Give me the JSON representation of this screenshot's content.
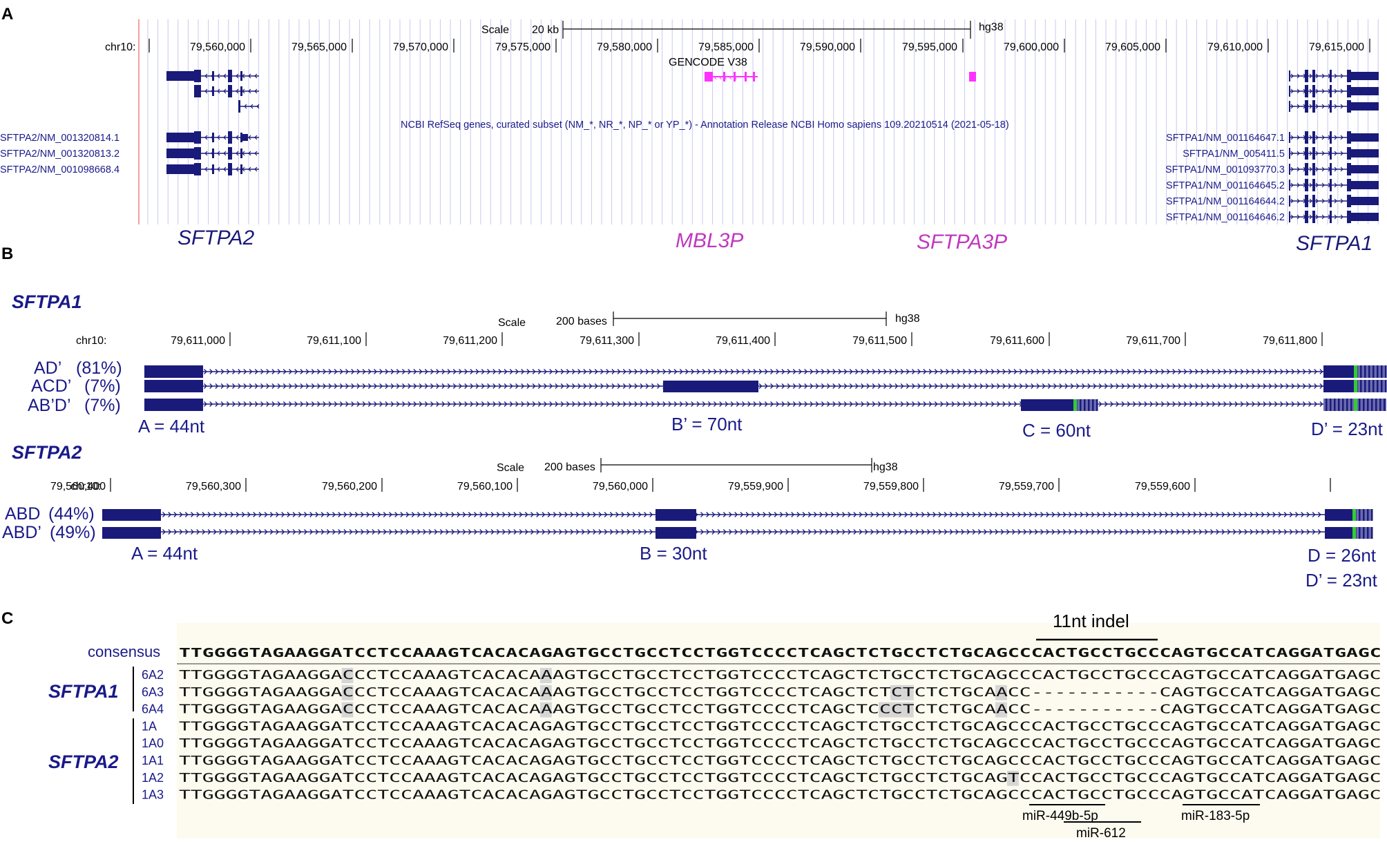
{
  "panelA": {
    "label": "A",
    "scale_label": "Scale",
    "scale_value": "20 kb",
    "assembly": "hg38",
    "chrom": "chr10:",
    "ticks": [
      "79,560,000",
      "79,565,000",
      "79,570,000",
      "79,575,000",
      "79,580,000",
      "79,585,000",
      "79,590,000",
      "79,595,000",
      "79,600,000",
      "79,605,000",
      "79,610,000",
      "79,615,000"
    ],
    "gencode": "GENCODE V38",
    "refseq_note": "NCBI RefSeq genes, curated subset (NM_*, NR_*, NP_* or YP_*) - Annotation Release NCBI Homo sapiens 109.20210514 (2021-05-18)",
    "left_transcripts": [
      "SFTPA2/NM_001320814.1",
      "SFTPA2/NM_001320813.2",
      "SFTPA2/NM_001098668.4"
    ],
    "right_transcripts": [
      "SFTPA1/NM_001164647.1",
      "SFTPA1/NM_005411.5",
      "SFTPA1/NM_001093770.3",
      "SFTPA1/NM_001164645.2",
      "SFTPA1/NM_001164644.2",
      "SFTPA1/NM_001164646.2"
    ],
    "genes": [
      "SFTPA2",
      "MBL3P",
      "SFTPA3P",
      "SFTPA1"
    ],
    "colors": {
      "navy": "#1a1a7a",
      "magenta": "#ff33ff",
      "pink_text": "#c038c0",
      "grid": "#c8c8f0"
    }
  },
  "panelB": {
    "label": "B",
    "sftpa1": {
      "title": "SFTPA1",
      "scale_label": "Scale",
      "scale_value": "200 bases",
      "assembly": "hg38",
      "chrom": "chr10:",
      "ticks": [
        "79,611,000",
        "79,611,100",
        "79,611,200",
        "79,611,300",
        "79,611,400",
        "79,611,500",
        "79,611,600",
        "79,611,700",
        "79,611,800"
      ],
      "isoforms": [
        {
          "name": "AD’",
          "pct": "(81%)"
        },
        {
          "name": "ACD’",
          "pct": "(7%)"
        },
        {
          "name": "AB’D’",
          "pct": "(7%)"
        }
      ],
      "exons": [
        "A = 44nt",
        "B’ = 70nt",
        "C = 60nt",
        "D’ = 23nt"
      ]
    },
    "sftpa2": {
      "title": "SFTPA2",
      "scale_label": "Scale",
      "scale_value": "200 bases",
      "assembly": "hg38",
      "chrom": "chr10:",
      "ticks": [
        "79,560,400",
        "79,560,300",
        "79,560,200",
        "79,560,100",
        "79,560,000",
        "79,559,900",
        "79,559,800",
        "79,559,700",
        "79,559,600"
      ],
      "isoforms": [
        {
          "name": "ABD",
          "pct": "(44%)"
        },
        {
          "name": "ABD’",
          "pct": "(49%)"
        }
      ],
      "exons": [
        "A = 44nt",
        "B = 30nt",
        "D = 26nt",
        "D’ = 23nt"
      ]
    },
    "colors": {
      "exon": "#1a1a7a",
      "green": "#33cc33",
      "stripe": "#6a6ab0"
    }
  },
  "panelC": {
    "label": "C",
    "indel_label": "11nt indel",
    "consensus_label": "consensus",
    "consensus": "TTGGGGTAGAAGGATCCTCCAAAGTCACACAGAGTGCCTGCCTCCTGGTCCCCTCAGCTCTGCCTCTGCAGCCCACTGCCTGCCCAGTGCCATCAGGATGAGC",
    "groups": [
      {
        "gene": "SFTPA1",
        "rows": [
          {
            "name": "6A2",
            "seq": "TTGGGGTAGAAGGACCCTCCAAAGTCACACAAAGTGCCTGCCTCCTGGTCCCCTCAGCTCTGCCTCTGCAGCCCACTGCCTGCCCAGTGCCATCAGGATGAGC"
          },
          {
            "name": "6A3",
            "seq": "TTGGGGTAGAAGGACCCTCCAAAGTCACACAAAGTGCCTGCCTCCTGGTCCCCTCAGCTCTCTCTCTGCAACC-----------CAGTGCCATCAGGATGAGC"
          },
          {
            "name": "6A4",
            "seq": "TTGGGGTAGAAGGACCCTCCAAAGTCACACAAAGTGCCTGCCTCCTGGTCCCCTCAGCTCCCTCTCTGCAACC-----------CAGTGCCATCAGGATGAGC"
          }
        ]
      },
      {
        "gene": "SFTPA2",
        "rows": [
          {
            "name": "1A",
            "seq": "TTGGGGTAGAAGGATCCTCCAAAGTCACACAGAGTGCCTGCCTCCTGGTCCCCTCAGCTCTGCCTCTGCAGCCCACTGCCTGCCCAGTGCCATCAGGATGAGC"
          },
          {
            "name": "1A0",
            "seq": "TTGGGGTAGAAGGATCCTCCAAAGTCACACAGAGTGCCTGCCTCCTGGTCCCCTCAGCTCTGCCTCTGCAGCCCACTGCCTGCCCAGTGCCATCAGGATGAGC"
          },
          {
            "name": "1A1",
            "seq": "TTGGGGTAGAAGGATCCTCCAAAGTCACACAGAGTGCCTGCCTCCTGGTCCCCTCAGCTCTGCCTCTGCAGCCCACTGCCTGCCCAGTGCCATCAGGATGAGC"
          },
          {
            "name": "1A2",
            "seq": "TTGGGGTAGAAGGATCCTCCAAAGTCACACAGAGTGCCTGCCTCCTGGTCCCCTCAGCTCTGCCTCTGCAGTCCACTGCCTGCCCAGTGCCATCAGGATGAGC"
          },
          {
            "name": "1A3",
            "seq": "TTGGGGTAGAAGGATCCTCCAAAGTCACACAGAGTGCCTGCCTCCTGGTCCCCTCAGCTCTGCCTCTGCAGCCCACTGCCTGCCCAGTGCCATCAGGATGAGC"
          }
        ]
      }
    ],
    "mirnas": [
      "miR-449b-5p",
      "miR-612",
      "miR-183-5p"
    ]
  }
}
